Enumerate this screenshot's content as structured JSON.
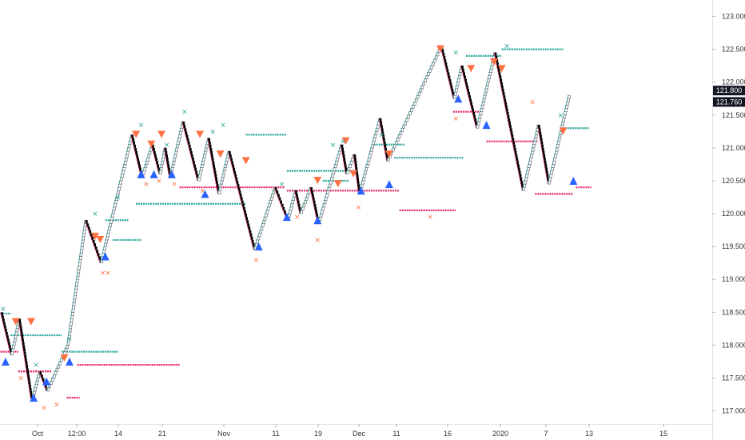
{
  "chart_data": {
    "type": "renko",
    "title": "",
    "xlabel": "",
    "ylabel": "",
    "ylim": [
      116.8,
      123.25
    ],
    "y_ticks": [
      "117.000",
      "117.500",
      "118.000",
      "118.500",
      "119.000",
      "119.500",
      "120.000",
      "120.500",
      "121.000",
      "121.500",
      "122.000",
      "122.500",
      "123.000"
    ],
    "x_ticks": [
      "Oct",
      "12:00",
      "14",
      "21",
      "Nov",
      "11",
      "19",
      "Dec",
      "11",
      "16",
      "2020",
      "7",
      "13",
      "15"
    ],
    "price_labels": [
      {
        "label": "121.800",
        "value": 121.8,
        "color": "#131722"
      },
      {
        "label": "121.760",
        "value": 121.76,
        "color": "#131722"
      }
    ],
    "colors": {
      "support": "#e91e63",
      "resistance": "#26a69a",
      "buy": "#2962ff",
      "sell": "#ff7043",
      "up_outline": "#26a69a",
      "brick_up": "#ffffff",
      "brick_down": "#000000"
    },
    "brick_size": 0.05,
    "pivots": [
      {
        "bar": 0,
        "price": 118.5
      },
      {
        "bar": 4,
        "price": 117.85
      },
      {
        "bar": 7,
        "price": 118.4
      },
      {
        "bar": 12,
        "price": 117.15
      },
      {
        "bar": 15,
        "price": 117.6
      },
      {
        "bar": 18,
        "price": 117.3
      },
      {
        "bar": 26,
        "price": 118.0
      },
      {
        "bar": 33,
        "price": 119.9
      },
      {
        "bar": 39,
        "price": 119.25
      },
      {
        "bar": 51,
        "price": 121.2
      },
      {
        "bar": 55,
        "price": 120.55
      },
      {
        "bar": 59,
        "price": 121.05
      },
      {
        "bar": 62,
        "price": 120.6
      },
      {
        "bar": 64,
        "price": 121.0
      },
      {
        "bar": 66,
        "price": 120.55
      },
      {
        "bar": 71,
        "price": 121.4
      },
      {
        "bar": 77,
        "price": 120.5
      },
      {
        "bar": 81,
        "price": 121.15
      },
      {
        "bar": 85,
        "price": 120.3
      },
      {
        "bar": 89,
        "price": 120.95
      },
      {
        "bar": 99,
        "price": 119.45
      },
      {
        "bar": 107,
        "price": 120.4
      },
      {
        "bar": 112,
        "price": 119.9
      },
      {
        "bar": 115,
        "price": 120.35
      },
      {
        "bar": 117,
        "price": 120.0
      },
      {
        "bar": 121,
        "price": 120.4
      },
      {
        "bar": 124,
        "price": 119.85
      },
      {
        "bar": 133,
        "price": 121.05
      },
      {
        "bar": 135,
        "price": 120.6
      },
      {
        "bar": 138,
        "price": 120.9
      },
      {
        "bar": 140,
        "price": 120.3
      },
      {
        "bar": 148,
        "price": 121.45
      },
      {
        "bar": 151,
        "price": 120.8
      },
      {
        "bar": 172,
        "price": 122.55
      },
      {
        "bar": 177,
        "price": 121.75
      },
      {
        "bar": 180,
        "price": 122.25
      },
      {
        "bar": 186,
        "price": 121.3
      },
      {
        "bar": 193,
        "price": 122.45
      },
      {
        "bar": 204,
        "price": 120.35
      },
      {
        "bar": 210,
        "price": 121.35
      },
      {
        "bar": 214,
        "price": 120.45
      },
      {
        "bar": 222,
        "price": 121.8
      }
    ],
    "levels": [
      {
        "kind": "resistance",
        "price": 118.48,
        "from": 0,
        "to": 4
      },
      {
        "kind": "support",
        "price": 117.9,
        "from": 0,
        "to": 7
      },
      {
        "kind": "resistance",
        "price": 118.15,
        "from": 4,
        "to": 24
      },
      {
        "kind": "support",
        "price": 117.6,
        "from": 7,
        "to": 20
      },
      {
        "kind": "resistance",
        "price": 117.9,
        "from": 24,
        "to": 46
      },
      {
        "kind": "support",
        "price": 117.7,
        "from": 30,
        "to": 70
      },
      {
        "kind": "support",
        "price": 117.2,
        "from": 26,
        "to": 31
      },
      {
        "kind": "resistance",
        "price": 119.6,
        "from": 44,
        "to": 55
      },
      {
        "kind": "resistance",
        "price": 120.15,
        "from": 53,
        "to": 96
      },
      {
        "kind": "resistance",
        "price": 119.9,
        "from": 41,
        "to": 50
      },
      {
        "kind": "resistance",
        "price": 121.2,
        "from": 96,
        "to": 112
      },
      {
        "kind": "support",
        "price": 120.4,
        "from": 70,
        "to": 111
      },
      {
        "kind": "resistance",
        "price": 120.65,
        "from": 112,
        "to": 138
      },
      {
        "kind": "resistance",
        "price": 120.5,
        "from": 126,
        "to": 136
      },
      {
        "kind": "support",
        "price": 120.35,
        "from": 112,
        "to": 156
      },
      {
        "kind": "resistance",
        "price": 121.05,
        "from": 146,
        "to": 158
      },
      {
        "kind": "resistance",
        "price": 120.85,
        "from": 154,
        "to": 181
      },
      {
        "kind": "support",
        "price": 120.05,
        "from": 156,
        "to": 178
      },
      {
        "kind": "resistance",
        "price": 122.4,
        "from": 182,
        "to": 196
      },
      {
        "kind": "support",
        "price": 121.55,
        "from": 177,
        "to": 188
      },
      {
        "kind": "resistance",
        "price": 122.5,
        "from": 196,
        "to": 220
      },
      {
        "kind": "support",
        "price": 121.1,
        "from": 190,
        "to": 210
      },
      {
        "kind": "support",
        "price": 120.3,
        "from": 209,
        "to": 224
      },
      {
        "kind": "resistance",
        "price": 121.3,
        "from": 219,
        "to": 230
      },
      {
        "kind": "support",
        "price": 120.4,
        "from": 225,
        "to": 231
      }
    ],
    "sell_signals": [
      {
        "bar": 6,
        "price": 118.35
      },
      {
        "bar": 12,
        "price": 118.35
      },
      {
        "bar": 25,
        "price": 117.8
      },
      {
        "bar": 37,
        "price": 119.65
      },
      {
        "bar": 39,
        "price": 119.6
      },
      {
        "bar": 53,
        "price": 121.2
      },
      {
        "bar": 59,
        "price": 121.05
      },
      {
        "bar": 63,
        "price": 121.2
      },
      {
        "bar": 78,
        "price": 121.2
      },
      {
        "bar": 86,
        "price": 120.9
      },
      {
        "bar": 96,
        "price": 120.8
      },
      {
        "bar": 124,
        "price": 120.5
      },
      {
        "bar": 132,
        "price": 120.45
      },
      {
        "bar": 135,
        "price": 121.1
      },
      {
        "bar": 138,
        "price": 120.6
      },
      {
        "bar": 152,
        "price": 120.9
      },
      {
        "bar": 172,
        "price": 122.5
      },
      {
        "bar": 184,
        "price": 122.2
      },
      {
        "bar": 193,
        "price": 122.3
      },
      {
        "bar": 196,
        "price": 122.2
      },
      {
        "bar": 220,
        "price": 121.25
      }
    ],
    "buy_signals": [
      {
        "bar": 2,
        "price": 117.75
      },
      {
        "bar": 13,
        "price": 117.2
      },
      {
        "bar": 18,
        "price": 117.45
      },
      {
        "bar": 27,
        "price": 117.75
      },
      {
        "bar": 41,
        "price": 119.35
      },
      {
        "bar": 55,
        "price": 120.6
      },
      {
        "bar": 60,
        "price": 120.6
      },
      {
        "bar": 67,
        "price": 120.6
      },
      {
        "bar": 80,
        "price": 120.3
      },
      {
        "bar": 101,
        "price": 119.5
      },
      {
        "bar": 112,
        "price": 119.95
      },
      {
        "bar": 124,
        "price": 119.9
      },
      {
        "bar": 141,
        "price": 120.35
      },
      {
        "bar": 152,
        "price": 120.45
      },
      {
        "bar": 179,
        "price": 121.75
      },
      {
        "bar": 190,
        "price": 121.35
      },
      {
        "bar": 224,
        "price": 120.5
      }
    ],
    "x_marks": [
      {
        "kind": "resistance",
        "bar": 1,
        "price": 118.55
      },
      {
        "kind": "support",
        "bar": 8,
        "price": 117.5
      },
      {
        "kind": "resistance",
        "bar": 14,
        "price": 117.7
      },
      {
        "kind": "support",
        "bar": 17,
        "price": 117.05
      },
      {
        "kind": "support",
        "bar": 22,
        "price": 117.1
      },
      {
        "kind": "resistance",
        "bar": 27,
        "price": 118.1
      },
      {
        "kind": "resistance",
        "bar": 37,
        "price": 120.0
      },
      {
        "kind": "support",
        "bar": 40,
        "price": 119.1
      },
      {
        "kind": "support",
        "bar": 42,
        "price": 119.1
      },
      {
        "kind": "resistance",
        "bar": 46,
        "price": 120.25
      },
      {
        "kind": "resistance",
        "bar": 55,
        "price": 121.35
      },
      {
        "kind": "support",
        "bar": 57,
        "price": 120.45
      },
      {
        "kind": "support",
        "bar": 62,
        "price": 120.5
      },
      {
        "kind": "resistance",
        "bar": 65,
        "price": 121.05
      },
      {
        "kind": "support",
        "bar": 68,
        "price": 120.45
      },
      {
        "kind": "resistance",
        "bar": 72,
        "price": 121.55
      },
      {
        "kind": "support",
        "bar": 79,
        "price": 120.35
      },
      {
        "kind": "resistance",
        "bar": 83,
        "price": 121.25
      },
      {
        "kind": "resistance",
        "bar": 87,
        "price": 121.35
      },
      {
        "kind": "support",
        "bar": 100,
        "price": 119.3
      },
      {
        "kind": "resistance",
        "bar": 110,
        "price": 120.45
      },
      {
        "kind": "support",
        "bar": 116,
        "price": 119.95
      },
      {
        "kind": "support",
        "bar": 124,
        "price": 119.6
      },
      {
        "kind": "resistance",
        "bar": 130,
        "price": 121.05
      },
      {
        "kind": "resistance",
        "bar": 134,
        "price": 121.1
      },
      {
        "kind": "support",
        "bar": 140,
        "price": 120.1
      },
      {
        "kind": "resistance",
        "bar": 149,
        "price": 121.2
      },
      {
        "kind": "support",
        "bar": 168,
        "price": 119.95
      },
      {
        "kind": "resistance",
        "bar": 178,
        "price": 122.45
      },
      {
        "kind": "support",
        "bar": 178,
        "price": 121.45
      },
      {
        "kind": "resistance",
        "bar": 198,
        "price": 122.55
      },
      {
        "kind": "support",
        "bar": 208,
        "price": 121.7
      },
      {
        "kind": "resistance",
        "bar": 219,
        "price": 121.5
      }
    ]
  }
}
